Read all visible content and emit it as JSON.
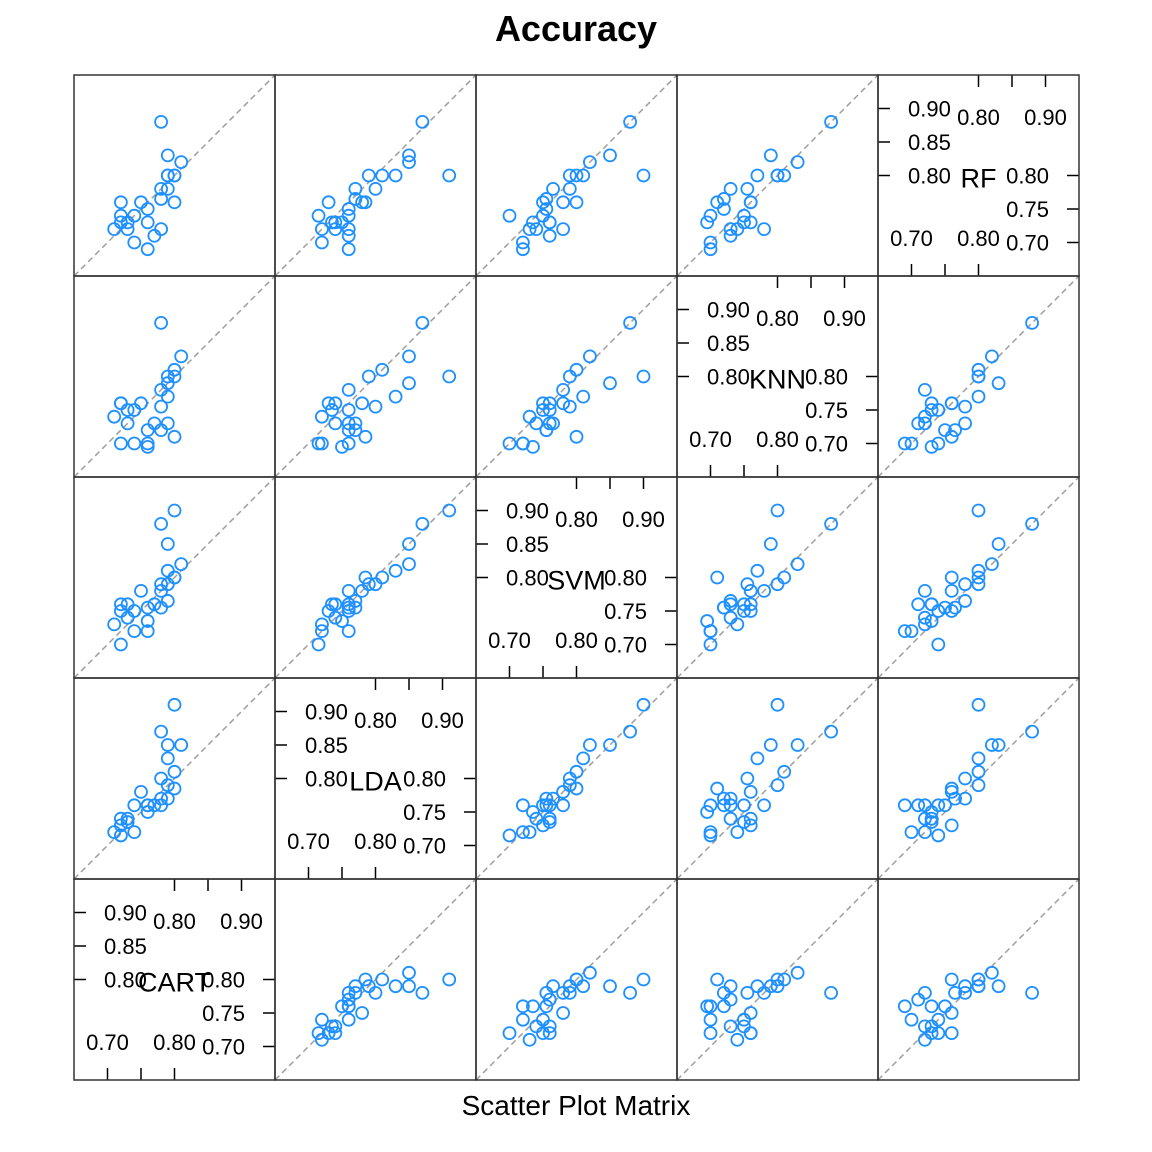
{
  "chart_data": {
    "type": "scatter",
    "title": "Accuracy",
    "xlabel": "Scatter Plot Matrix",
    "variables": [
      "CART",
      "LDA",
      "SVM",
      "KNN",
      "RF"
    ],
    "axis_range": [
      0.65,
      0.95
    ],
    "diag_ticks_major": [
      0.7,
      0.75,
      0.8,
      0.85,
      0.9
    ],
    "grid": false,
    "point_color": "#1E90FF",
    "diagonal_line_color": "#9E9E9E",
    "tick_labels": {
      "low_y": [
        "0.70",
        "0.75",
        "0.80"
      ],
      "high_y": [
        "0.80",
        "0.85",
        "0.90"
      ],
      "low_x": [
        "0.70",
        "0.80"
      ],
      "high_x": [
        "0.80",
        "0.90"
      ]
    },
    "observations": [
      {
        "CART": 0.76,
        "LDA": 0.75,
        "SVM": 0.735,
        "KNN": 0.695,
        "RF": 0.73
      },
      {
        "CART": 0.78,
        "LDA": 0.77,
        "SVM": 0.755,
        "KNN": 0.72,
        "RF": 0.765
      },
      {
        "CART": 0.72,
        "LDA": 0.715,
        "SVM": 0.7,
        "KNN": 0.7,
        "RF": 0.74
      },
      {
        "CART": 0.78,
        "LDA": 0.8,
        "SVM": 0.79,
        "KNN": 0.755,
        "RF": 0.78
      },
      {
        "CART": 0.8,
        "LDA": 0.785,
        "SVM": 0.8,
        "KNN": 0.71,
        "RF": 0.76
      },
      {
        "CART": 0.74,
        "LDA": 0.72,
        "SVM": 0.72,
        "KNN": 0.7,
        "RF": 0.7
      },
      {
        "CART": 0.79,
        "LDA": 0.77,
        "SVM": 0.765,
        "KNN": 0.73,
        "RF": 0.78
      },
      {
        "CART": 0.76,
        "LDA": 0.76,
        "SVM": 0.755,
        "KNN": 0.72,
        "RF": 0.75
      },
      {
        "CART": 0.72,
        "LDA": 0.73,
        "SVM": 0.75,
        "KNN": 0.76,
        "RF": 0.76
      },
      {
        "CART": 0.76,
        "LDA": 0.76,
        "SVM": 0.72,
        "KNN": 0.7,
        "RF": 0.69
      },
      {
        "CART": 0.8,
        "LDA": 0.81,
        "SVM": 0.8,
        "KNN": 0.81,
        "RF": 0.8
      },
      {
        "CART": 0.74,
        "LDA": 0.76,
        "SVM": 0.75,
        "KNN": 0.75,
        "RF": 0.74
      },
      {
        "CART": 0.73,
        "LDA": 0.735,
        "SVM": 0.76,
        "KNN": 0.75,
        "RF": 0.73
      },
      {
        "CART": 0.79,
        "LDA": 0.83,
        "SVM": 0.81,
        "KNN": 0.77,
        "RF": 0.8
      },
      {
        "CART": 0.8,
        "LDA": 0.91,
        "SVM": 0.9,
        "KNN": 0.8,
        "RF": 0.8
      },
      {
        "CART": 0.79,
        "LDA": 0.85,
        "SVM": 0.85,
        "KNN": 0.79,
        "RF": 0.83
      },
      {
        "CART": 0.75,
        "LDA": 0.78,
        "SVM": 0.78,
        "KNN": 0.76,
        "RF": 0.76
      },
      {
        "CART": 0.73,
        "LDA": 0.74,
        "SVM": 0.74,
        "KNN": 0.73,
        "RF": 0.72
      },
      {
        "CART": 0.79,
        "LDA": 0.79,
        "SVM": 0.79,
        "KNN": 0.8,
        "RF": 0.8
      },
      {
        "CART": 0.78,
        "LDA": 0.76,
        "SVM": 0.78,
        "KNN": 0.78,
        "RF": 0.72
      },
      {
        "CART": 0.71,
        "LDA": 0.72,
        "SVM": 0.73,
        "KNN": 0.74,
        "RF": 0.72
      },
      {
        "CART": 0.77,
        "LDA": 0.76,
        "SVM": 0.76,
        "KNN": 0.73,
        "RF": 0.71
      },
      {
        "CART": 0.72,
        "LDA": 0.74,
        "SVM": 0.76,
        "KNN": 0.76,
        "RF": 0.73
      },
      {
        "CART": 0.78,
        "LDA": 0.87,
        "SVM": 0.88,
        "KNN": 0.88,
        "RF": 0.88
      },
      {
        "CART": 0.81,
        "LDA": 0.85,
        "SVM": 0.82,
        "KNN": 0.83,
        "RF": 0.82
      }
    ]
  }
}
